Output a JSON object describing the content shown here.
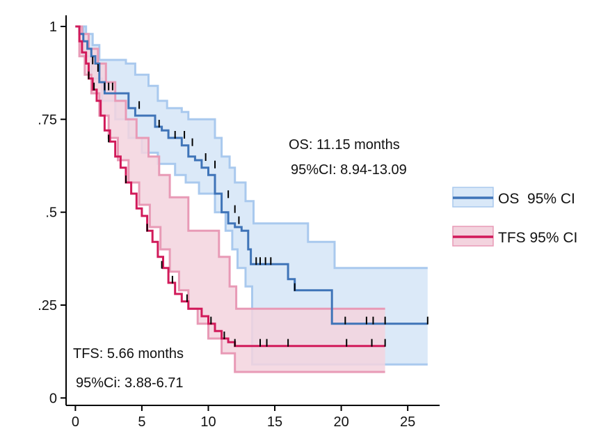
{
  "chart_data": {
    "type": "line",
    "subtype": "kaplan-meier",
    "title": "",
    "xlabel": "",
    "ylabel": "",
    "xlim": [
      -0.7,
      27.4
    ],
    "ylim": [
      -0.02,
      1.03
    ],
    "x_ticks": [
      0,
      5,
      10,
      15,
      20,
      25
    ],
    "x_tick_labels": [
      "0",
      "5",
      "10",
      "15",
      "20",
      "25"
    ],
    "y_ticks": [
      0,
      0.25,
      0.5,
      0.75,
      1
    ],
    "y_tick_labels": [
      "0",
      ".25",
      ".5",
      ".75",
      "1"
    ],
    "grid": false,
    "legend_position": "right",
    "legend": [
      {
        "label": "OS  95% CI",
        "line_color": "#3f74b8",
        "fill_color": "#d9e8f8",
        "fill_border": "#a9c9ee"
      },
      {
        "label": "TFS 95% CI",
        "line_color": "#d11a5a",
        "fill_color": "#f3d3de",
        "fill_border": "#e89ab6"
      }
    ],
    "annotations": {
      "os_median": "OS: 11.15 months",
      "os_ci": "95%CI: 8.94-13.09",
      "tfs_median": "TFS: 5.66 months",
      "tfs_ci": "95%Ci: 3.88-6.71"
    },
    "series": [
      {
        "name": "OS",
        "color": "#3f74b8",
        "ci_fill": "#d9e8f8",
        "ci_border": "#a9c9ee",
        "step_x": [
          0,
          0.3,
          0.6,
          0.9,
          1.2,
          1.5,
          1.8,
          2.2,
          4,
          4.5,
          5,
          6,
          6.5,
          7,
          8,
          8.5,
          9,
          9.5,
          10,
          10.5,
          11,
          11.5,
          12,
          12.5,
          13,
          13.2,
          16,
          16.5,
          19.3,
          26.5
        ],
        "step_y": [
          1,
          0.98,
          0.96,
          0.94,
          0.92,
          0.9,
          0.85,
          0.82,
          0.78,
          0.76,
          0.76,
          0.73,
          0.72,
          0.7,
          0.68,
          0.65,
          0.64,
          0.62,
          0.6,
          0.55,
          0.5,
          0.47,
          0.46,
          0.45,
          0.4,
          0.36,
          0.32,
          0.29,
          0.2,
          0.2
        ],
        "upper_x": [
          0,
          0.8,
          1.3,
          1.8,
          3.8,
          4.5,
          5.5,
          6.2,
          6.9,
          8,
          8.5,
          10.5,
          11,
          11.6,
          12,
          12.8,
          13.4,
          17.5,
          19.5,
          26.5
        ],
        "upper_y": [
          1,
          0.98,
          0.95,
          0.91,
          0.9,
          0.87,
          0.84,
          0.8,
          0.78,
          0.77,
          0.75,
          0.7,
          0.65,
          0.62,
          0.58,
          0.53,
          0.47,
          0.42,
          0.35,
          0.35
        ],
        "lower_x": [
          0,
          0.6,
          1.2,
          2,
          3,
          4,
          5,
          6.2,
          7.5,
          8.3,
          9.3,
          10.5,
          11.3,
          11.8,
          12.2,
          12.8,
          13.3,
          26.5
        ],
        "lower_y": [
          1,
          0.92,
          0.86,
          0.8,
          0.75,
          0.7,
          0.66,
          0.63,
          0.6,
          0.58,
          0.55,
          0.5,
          0.45,
          0.4,
          0.35,
          0.3,
          0.09,
          0.09
        ],
        "censor_x": [
          1.3,
          1.7,
          2.2,
          2.5,
          2.8,
          4.8,
          6.3,
          7.5,
          8.2,
          8.8,
          9.8,
          10.5,
          11.5,
          12.0,
          12.3,
          13.6,
          13.9,
          14.3,
          14.7,
          16.5,
          20.3,
          21.9,
          22.4,
          23.3,
          26.5
        ],
        "censor_y": [
          0.9,
          0.88,
          0.83,
          0.83,
          0.83,
          0.78,
          0.73,
          0.7,
          0.7,
          0.68,
          0.64,
          0.62,
          0.54,
          0.5,
          0.47,
          0.36,
          0.36,
          0.36,
          0.36,
          0.29,
          0.2,
          0.2,
          0.2,
          0.2,
          0.2
        ]
      },
      {
        "name": "TFS",
        "color": "#d11a5a",
        "ci_fill": "#f3d3de",
        "ci_border": "#e89ab6",
        "step_x": [
          0,
          0.3,
          0.5,
          0.8,
          1,
          1.3,
          1.6,
          1.9,
          2.2,
          2.6,
          3,
          3.4,
          3.8,
          4.2,
          4.6,
          5,
          5.4,
          5.8,
          6.2,
          6.6,
          7,
          7.5,
          8,
          8.5,
          9.5,
          10,
          10.5,
          11,
          11.5,
          12,
          23.3
        ],
        "step_y": [
          1,
          0.96,
          0.93,
          0.9,
          0.86,
          0.83,
          0.8,
          0.76,
          0.72,
          0.69,
          0.65,
          0.62,
          0.58,
          0.55,
          0.51,
          0.49,
          0.45,
          0.42,
          0.38,
          0.35,
          0.31,
          0.28,
          0.26,
          0.24,
          0.22,
          0.2,
          0.18,
          0.16,
          0.15,
          0.14,
          0.14
        ],
        "upper_x": [
          0,
          0.5,
          1,
          1.7,
          2.3,
          3,
          3.8,
          4.6,
          5.5,
          6.3,
          7.1,
          8.5,
          10.8,
          11.6,
          12.1,
          23.3
        ],
        "upper_y": [
          1,
          0.98,
          0.94,
          0.9,
          0.85,
          0.8,
          0.75,
          0.7,
          0.65,
          0.6,
          0.54,
          0.45,
          0.38,
          0.3,
          0.24,
          0.24
        ],
        "lower_x": [
          0,
          0.3,
          0.7,
          1.2,
          1.8,
          2.5,
          3.2,
          4,
          4.8,
          5.6,
          6.4,
          7.1,
          7.8,
          8.5,
          9.2,
          10,
          11,
          12,
          23.3
        ],
        "lower_y": [
          1,
          0.92,
          0.87,
          0.82,
          0.76,
          0.7,
          0.64,
          0.58,
          0.52,
          0.46,
          0.4,
          0.34,
          0.29,
          0.24,
          0.2,
          0.16,
          0.12,
          0.07,
          0.07
        ],
        "censor_x": [
          1.0,
          1.4,
          2.5,
          3.8,
          5.4,
          6.5,
          7.3,
          8.4,
          10.2,
          11.2,
          12.0,
          13.9,
          14.4,
          16.0,
          20.4,
          22.3,
          23.3
        ],
        "censor_y": [
          0.86,
          0.83,
          0.69,
          0.58,
          0.45,
          0.35,
          0.31,
          0.26,
          0.2,
          0.16,
          0.14,
          0.14,
          0.14,
          0.14,
          0.14,
          0.14,
          0.14
        ]
      }
    ]
  }
}
